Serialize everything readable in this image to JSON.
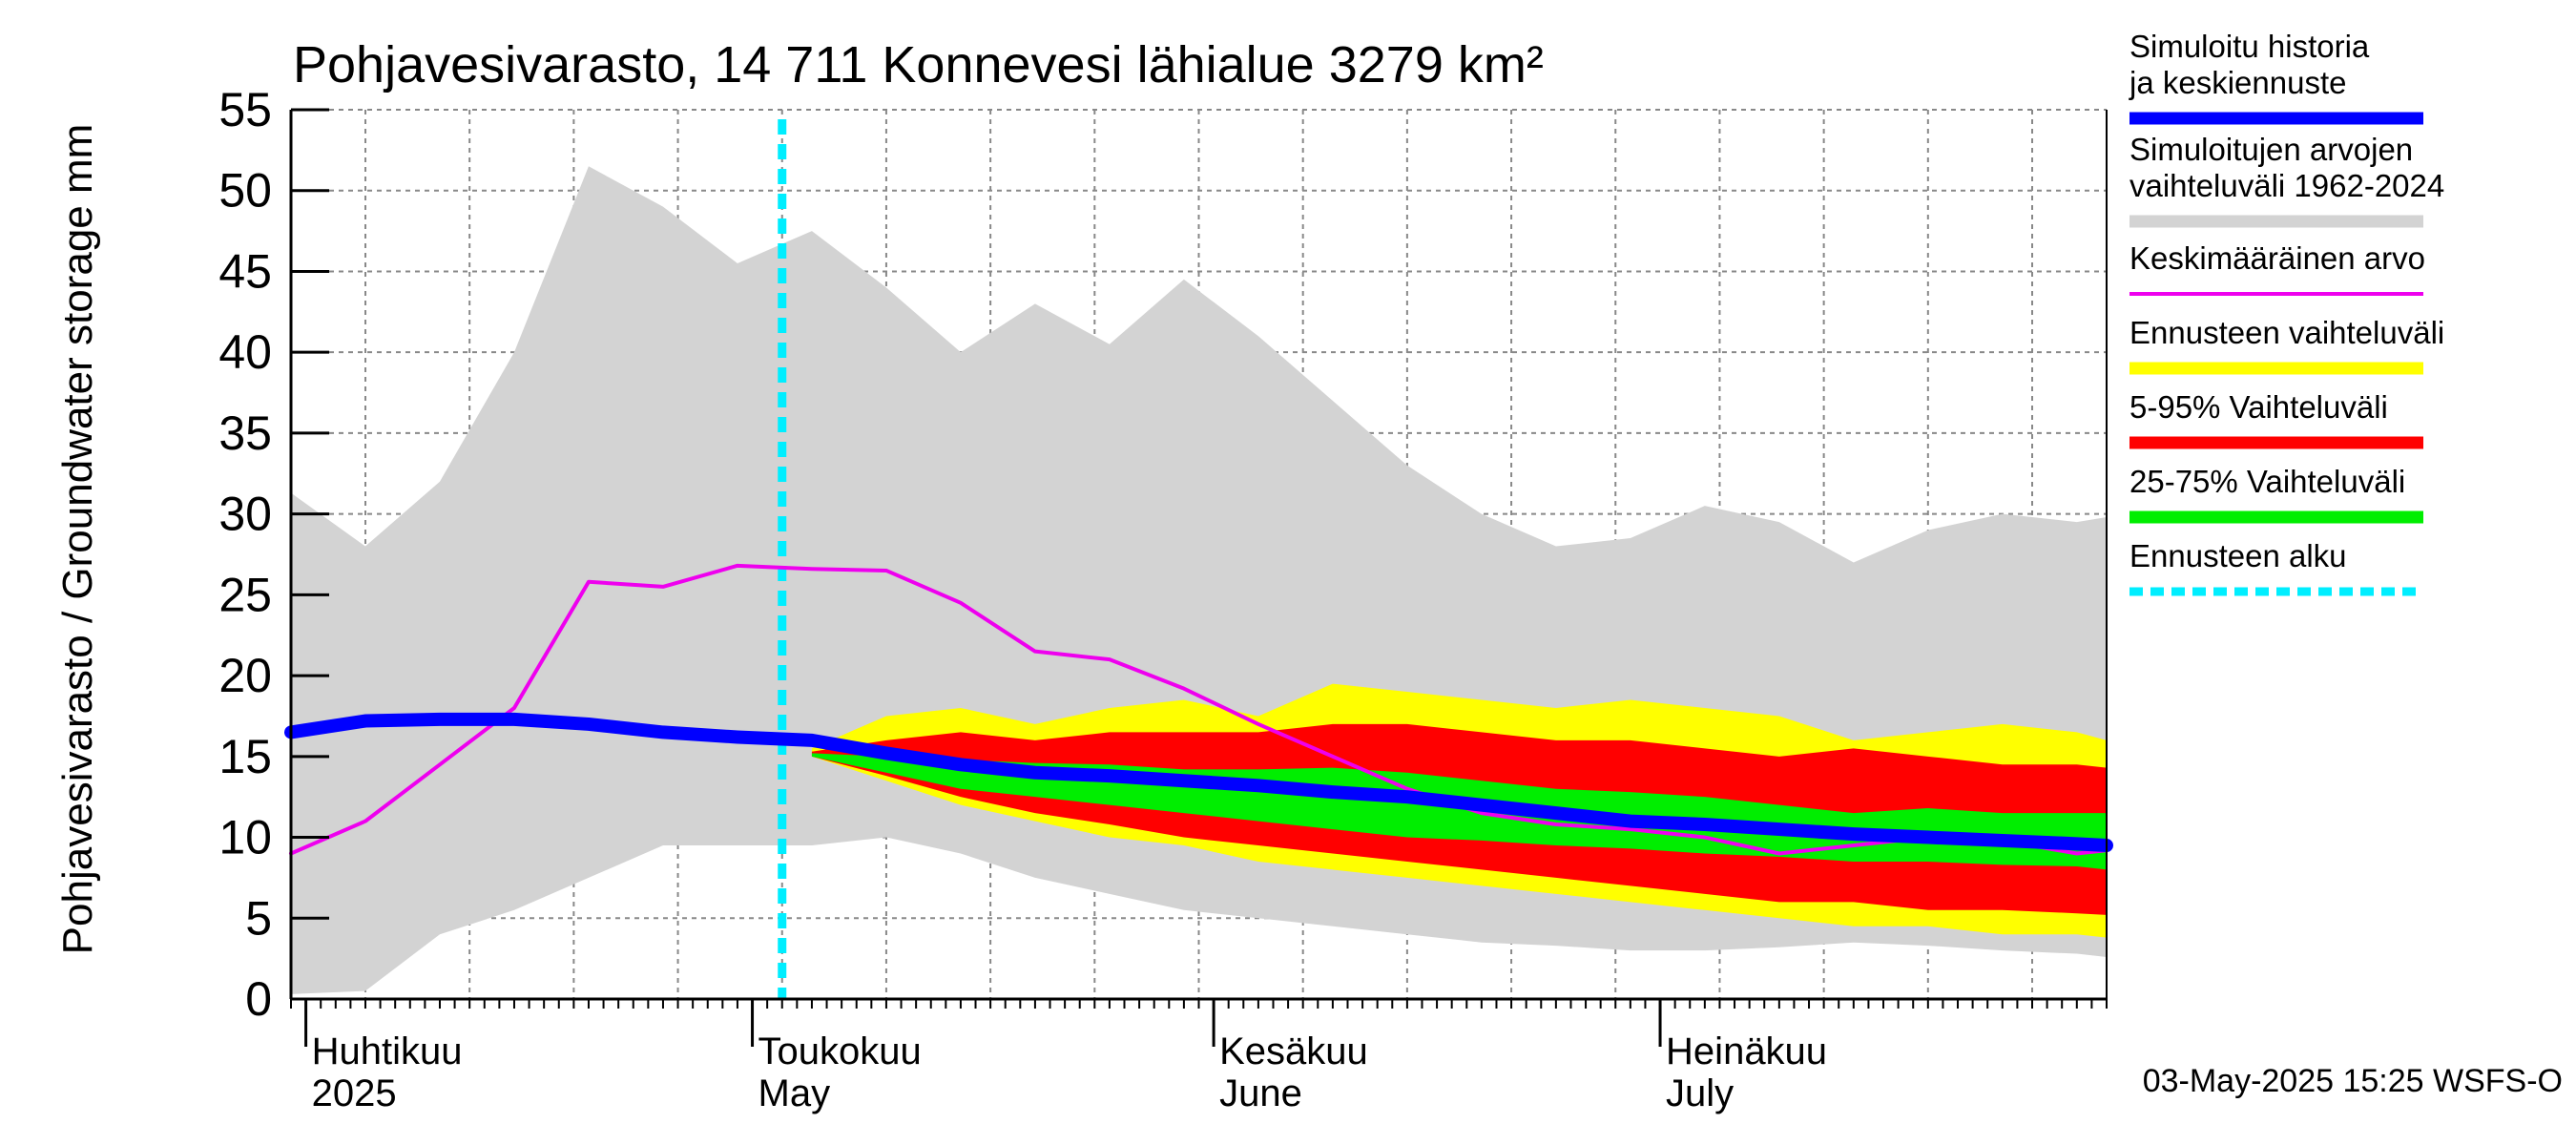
{
  "chart_data": {
    "type": "area",
    "title": "Pohjavesivarasto, 14 711 Konnevesi lähialue 3279 km²",
    "ylabel": "Pohjavesivarasto / Groundwater storage   mm",
    "ylim": [
      0,
      55
    ],
    "y_ticks": [
      "0",
      "5",
      "10",
      "15",
      "20",
      "25",
      "30",
      "35",
      "40",
      "45",
      "50",
      "55"
    ],
    "x_range": [
      "2025-03-31",
      "2025-07-31"
    ],
    "forecast_start": "2025-05-03",
    "grid": true,
    "legend_position": "right",
    "month_labels": [
      {
        "fi": "Huhtikuu",
        "en": "2025",
        "date": "2025-04-01"
      },
      {
        "fi": "Toukokuu",
        "en": "May",
        "date": "2025-05-01"
      },
      {
        "fi": "Kesäkuu",
        "en": "June",
        "date": "2025-06-01"
      },
      {
        "fi": "Heinäkuu",
        "en": "July",
        "date": "2025-07-01"
      }
    ],
    "x_dates": [
      "2025-03-31",
      "2025-04-05",
      "2025-04-10",
      "2025-04-15",
      "2025-04-20",
      "2025-04-25",
      "2025-04-30",
      "2025-05-05",
      "2025-05-10",
      "2025-05-15",
      "2025-05-20",
      "2025-05-25",
      "2025-05-30",
      "2025-06-04",
      "2025-06-09",
      "2025-06-14",
      "2025-06-19",
      "2025-06-24",
      "2025-06-29",
      "2025-07-04",
      "2025-07-09",
      "2025-07-14",
      "2025-07-19",
      "2025-07-24",
      "2025-07-29",
      "2025-07-31"
    ],
    "series": [
      {
        "name": "Simuloitujen arvojen vaihteluväli 1962-2024",
        "color": "#d3d3d3",
        "upper": [
          31.3,
          28.0,
          32.0,
          40.0,
          51.5,
          49.0,
          45.5,
          47.5,
          44.0,
          40.0,
          43.0,
          40.5,
          44.5,
          41.0,
          37.0,
          33.0,
          30.0,
          28.0,
          28.5,
          30.5,
          29.5,
          27.0,
          29.0,
          30.0,
          29.5,
          29.8
        ],
        "lower": [
          0.3,
          0.5,
          4.0,
          5.5,
          7.5,
          9.5,
          9.5,
          9.5,
          10.0,
          9.0,
          7.5,
          6.5,
          5.5,
          5.0,
          4.5,
          4.0,
          3.5,
          3.3,
          3.0,
          3.0,
          3.2,
          3.5,
          3.3,
          3.0,
          2.8,
          2.6
        ]
      },
      {
        "name": "Ennusteen vaihteluväli",
        "color": "#ffff00",
        "upper": [
          null,
          null,
          null,
          null,
          null,
          null,
          null,
          15.5,
          17.5,
          18.0,
          17.0,
          18.0,
          18.5,
          17.5,
          19.5,
          19.0,
          18.5,
          18.0,
          18.5,
          18.0,
          17.5,
          16.0,
          16.5,
          17.0,
          16.5,
          16.0
        ],
        "lower": [
          null,
          null,
          null,
          null,
          null,
          null,
          null,
          15.0,
          13.5,
          12.0,
          11.0,
          10.0,
          9.5,
          8.5,
          8.0,
          7.5,
          7.0,
          6.5,
          6.0,
          5.5,
          5.0,
          4.5,
          4.5,
          4.0,
          4.0,
          3.8
        ]
      },
      {
        "name": "5-95% Vaihteluväli",
        "color": "#ff0000",
        "upper": [
          null,
          null,
          null,
          null,
          null,
          null,
          null,
          15.3,
          16.0,
          16.5,
          16.0,
          16.5,
          16.5,
          16.5,
          17.0,
          17.0,
          16.5,
          16.0,
          16.0,
          15.5,
          15.0,
          15.5,
          15.0,
          14.5,
          14.5,
          14.3
        ],
        "lower": [
          null,
          null,
          null,
          null,
          null,
          null,
          null,
          15.0,
          13.8,
          12.5,
          11.5,
          10.8,
          10.0,
          9.5,
          9.0,
          8.5,
          8.0,
          7.5,
          7.0,
          6.5,
          6.0,
          6.0,
          5.5,
          5.5,
          5.3,
          5.2
        ]
      },
      {
        "name": "25-75% Vaihteluväli",
        "color": "#00ee00",
        "upper": [
          null,
          null,
          null,
          null,
          null,
          null,
          null,
          15.2,
          15.0,
          14.8,
          14.6,
          14.5,
          14.2,
          14.2,
          14.3,
          14.0,
          13.5,
          13.0,
          12.8,
          12.5,
          12.0,
          11.5,
          11.8,
          11.5,
          11.5,
          11.5
        ],
        "lower": [
          null,
          null,
          null,
          null,
          null,
          null,
          null,
          15.0,
          14.0,
          13.0,
          12.5,
          12.0,
          11.5,
          11.0,
          10.5,
          10.0,
          9.8,
          9.5,
          9.3,
          9.0,
          8.8,
          8.5,
          8.5,
          8.3,
          8.2,
          8.0
        ]
      },
      {
        "name": "Keskimääräinen arvo",
        "color": "#ee00ee",
        "values": [
          9.0,
          11.0,
          14.5,
          18.0,
          25.8,
          25.5,
          26.8,
          26.6,
          26.5,
          24.5,
          21.5,
          21.0,
          19.2,
          17.0,
          15.0,
          13.0,
          11.5,
          10.8,
          10.5,
          10.0,
          9.0,
          9.5,
          10.0,
          9.8,
          9.0,
          9.2
        ]
      },
      {
        "name": "Simuloitu historia ja keskiennuste",
        "color": "#0000ff",
        "values": [
          16.5,
          17.2,
          17.3,
          17.3,
          17.0,
          16.5,
          16.2,
          16.0,
          15.2,
          14.5,
          14.0,
          13.8,
          13.5,
          13.2,
          12.8,
          12.5,
          12.0,
          11.5,
          11.0,
          10.8,
          10.5,
          10.2,
          10.0,
          9.8,
          9.6,
          9.5
        ]
      }
    ],
    "legend": [
      {
        "label": "Simuloitu historia ja keskiennuste",
        "color": "#0000ff",
        "style": "thick"
      },
      {
        "label": "Simuloitujen arvojen vaihteluväli 1962-2024",
        "color": "#d3d3d3",
        "style": "thick"
      },
      {
        "label": "Keskimääräinen arvo",
        "color": "#ee00ee",
        "style": "thin"
      },
      {
        "label": "Ennusteen vaihteluväli",
        "color": "#ffff00",
        "style": "thick"
      },
      {
        "label": "5-95% Vaihteluväli",
        "color": "#ff0000",
        "style": "thick"
      },
      {
        "label": "25-75% Vaihteluväli",
        "color": "#00ee00",
        "style": "thick"
      },
      {
        "label": "Ennusteen alku",
        "color": "#00eeff",
        "style": "dashed"
      }
    ],
    "footer": "03-May-2025 15:25 WSFS-O"
  }
}
